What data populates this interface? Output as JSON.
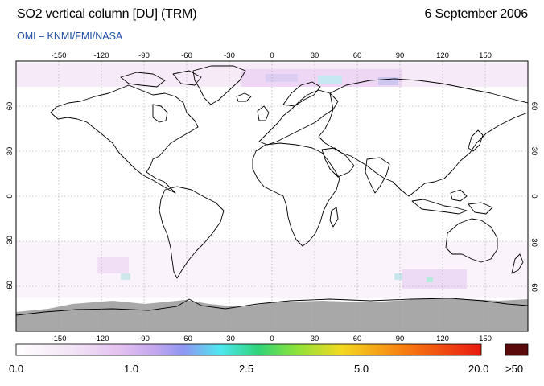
{
  "header": {
    "title": "SO2 vertical column [DU] (TRM)",
    "date": "6 September 2006",
    "credit": "OMI  –  KNMI/FMI/NASA"
  },
  "map": {
    "projection": "equirectangular",
    "lon_range": [
      -180,
      180
    ],
    "lat_range": [
      -90,
      90
    ],
    "grid": true,
    "lon_ticks": [
      "-150",
      "-120",
      "-90",
      "-60",
      "-30",
      "0",
      "30",
      "60",
      "90",
      "120",
      "150"
    ],
    "lat_ticks": [
      "60",
      "30",
      "0",
      "-30",
      "-60"
    ],
    "no_data_color": "#a8a8a8",
    "land_outline_color": "#000000"
  },
  "colorbar": {
    "labels": [
      "0.0",
      "1.0",
      "2.5",
      "5.0",
      "20.0",
      ">50"
    ],
    "colors": [
      "#ffffff",
      "#f1d8f3",
      "#dcb0ee",
      "#a89cf0",
      "#4ee8f0",
      "#2fd37a",
      "#8ae23a",
      "#f4d820",
      "#f77a10",
      "#e81a10",
      "#5a0a0a"
    ],
    "overflow_color": "#5a0a0a"
  }
}
